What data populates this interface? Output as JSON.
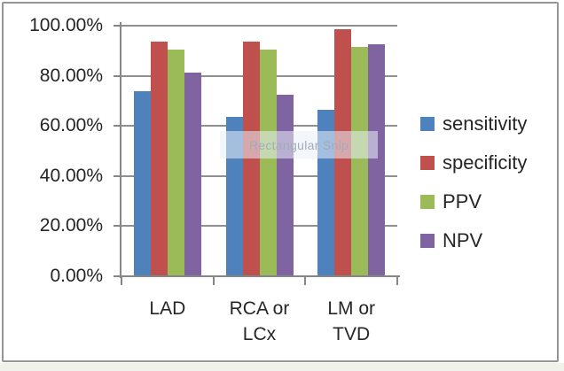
{
  "overlay": {
    "label": "Rectangular Snip"
  },
  "chart_data": {
    "type": "bar",
    "title": "",
    "xlabel": "",
    "ylabel": "",
    "categories": [
      "LAD",
      "RCA or LCx",
      "LM or TVD"
    ],
    "category_lines": [
      [
        "LAD"
      ],
      [
        "RCA or",
        "LCx"
      ],
      [
        "LM or",
        "TVD"
      ]
    ],
    "series": [
      {
        "name": "sensitivity",
        "color": "#4f81bd",
        "values": [
          73.7,
          63.5,
          66.6
        ]
      },
      {
        "name": "specificity",
        "color": "#c0504d",
        "values": [
          93.8,
          93.8,
          98.7
        ]
      },
      {
        "name": "PPV",
        "color": "#9bbb59",
        "values": [
          90.3,
          90.3,
          91.6
        ]
      },
      {
        "name": "NPV",
        "color": "#8064a2",
        "values": [
          81.4,
          72.4,
          92.7
        ]
      }
    ],
    "ylim": [
      0,
      100
    ],
    "ytick_step_pct": 20,
    "ytick_labels": [
      "0.00%",
      "20.00%",
      "40.00%",
      "60.00%",
      "80.00%",
      "100.00%"
    ],
    "grid": true,
    "legend_position": "right"
  }
}
